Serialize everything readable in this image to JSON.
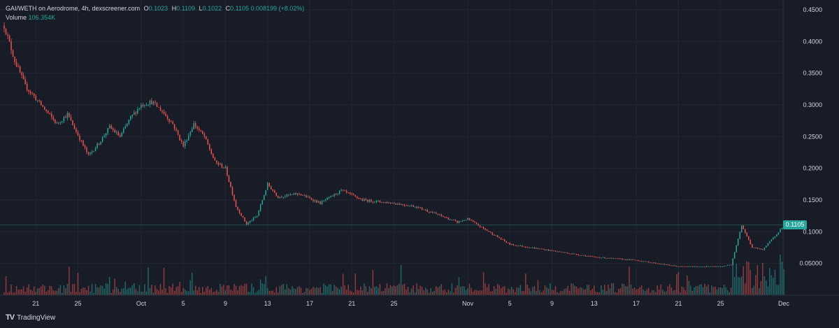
{
  "legend": {
    "pair": "GAI/WETH on Aerodrome, 4h, dexscreener.com",
    "o_key": "O",
    "o": "0.1023",
    "h_key": "H",
    "h": "0.1109",
    "l_key": "L",
    "l": "0.1022",
    "c_key": "C",
    "c": "0.1105",
    "change": "0.008199 (+8.02%)",
    "volume_label": "Volume",
    "volume": "106.354K"
  },
  "brand": {
    "name": "TradingView"
  },
  "colors": {
    "up": "#26a69a",
    "down": "#ef5350",
    "bg": "#181c26",
    "grid": "#222632",
    "text": "#d1d4dc"
  },
  "chart_data": {
    "type": "candlestick",
    "title": "GAI/WETH on Aerodrome, 4h, dexscreener.com",
    "interval": "4h",
    "last_price": "0.1105",
    "y_ticks": [
      "0.4500",
      "0.4000",
      "0.3500",
      "0.3000",
      "0.2500",
      "0.2000",
      "0.1500",
      "0.1000",
      "0.05000"
    ],
    "ylim": [
      0,
      0.46
    ],
    "x_ticks": [
      "21",
      "25",
      "Oct",
      "5",
      "9",
      "13",
      "17",
      "21",
      "25",
      "Nov",
      "5",
      "9",
      "13",
      "17",
      "21",
      "25",
      "Dec"
    ],
    "x_range": [
      "2024-09-18",
      "2024-12-01"
    ],
    "price_path": [
      [
        "2024-09-18",
        0.425
      ],
      [
        "2024-09-19",
        0.37
      ],
      [
        "2024-09-20",
        0.33
      ],
      [
        "2024-09-21",
        0.31
      ],
      [
        "2024-09-23",
        0.27
      ],
      [
        "2024-09-24",
        0.285
      ],
      [
        "2024-09-26",
        0.22
      ],
      [
        "2024-09-27",
        0.24
      ],
      [
        "2024-09-28",
        0.265
      ],
      [
        "2024-09-29",
        0.25
      ],
      [
        "2024-09-30",
        0.28
      ],
      [
        "2024-10-01",
        0.3
      ],
      [
        "2024-10-02",
        0.305
      ],
      [
        "2024-10-03",
        0.29
      ],
      [
        "2024-10-04",
        0.27
      ],
      [
        "2024-10-05",
        0.235
      ],
      [
        "2024-10-06",
        0.27
      ],
      [
        "2024-10-07",
        0.25
      ],
      [
        "2024-10-08",
        0.21
      ],
      [
        "2024-10-09",
        0.2
      ],
      [
        "2024-10-10",
        0.14
      ],
      [
        "2024-10-11",
        0.112
      ],
      [
        "2024-10-12",
        0.125
      ],
      [
        "2024-10-13",
        0.175
      ],
      [
        "2024-10-14",
        0.155
      ],
      [
        "2024-10-16",
        0.16
      ],
      [
        "2024-10-18",
        0.145
      ],
      [
        "2024-10-20",
        0.165
      ],
      [
        "2024-10-22",
        0.15
      ],
      [
        "2024-10-25",
        0.145
      ],
      [
        "2024-10-27",
        0.14
      ],
      [
        "2024-10-29",
        0.128
      ],
      [
        "2024-10-31",
        0.115
      ],
      [
        "2024-11-01",
        0.12
      ],
      [
        "2024-11-03",
        0.1
      ],
      [
        "2024-11-05",
        0.08
      ],
      [
        "2024-11-09",
        0.07
      ],
      [
        "2024-11-13",
        0.06
      ],
      [
        "2024-11-17",
        0.055
      ],
      [
        "2024-11-21",
        0.045
      ],
      [
        "2024-11-25",
        0.045
      ],
      [
        "2024-11-26",
        0.048
      ],
      [
        "2024-11-27",
        0.11
      ],
      [
        "2024-11-28",
        0.075
      ],
      [
        "2024-11-29",
        0.072
      ],
      [
        "2024-11-30",
        0.09
      ],
      [
        "2024-12-01",
        0.1105
      ]
    ]
  }
}
